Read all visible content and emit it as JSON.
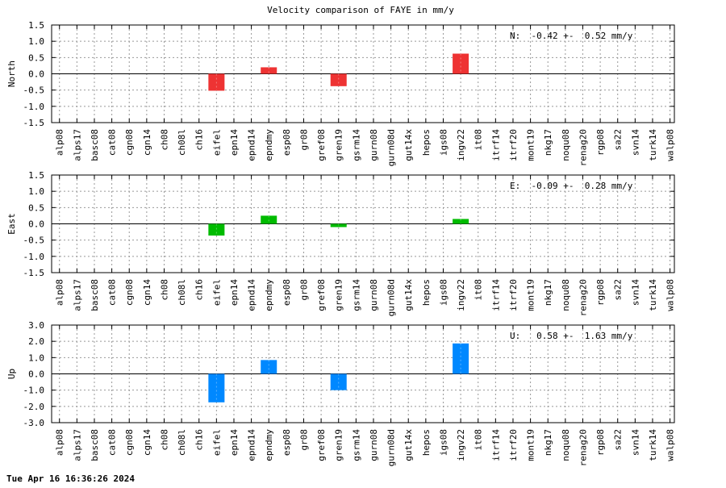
{
  "title": "Velocity comparison of FAYE in mm/y",
  "footer": "Tue Apr 16 16:36:26 2024",
  "chart_data": [
    {
      "type": "bar",
      "ylabel": "North",
      "stat_text": "N:  -0.42 +-  0.52 mm/y",
      "color": "#ee3333",
      "ylim": [
        -1.5,
        1.5
      ],
      "yticks": [
        -1.5,
        -1.0,
        -0.5,
        0.0,
        0.5,
        1.0,
        1.5
      ],
      "ytick_labels": [
        "-1.5",
        "-1.0",
        "-0.5",
        "0.0",
        "0.5",
        "1.0",
        "1.5"
      ],
      "grid": true,
      "categories": [
        "alp08",
        "alps17",
        "basc08",
        "cat08",
        "cgn08",
        "cgn14",
        "ch08",
        "ch08l",
        "ch16",
        "eifel",
        "epn14",
        "epnd14",
        "epndmy",
        "esp08",
        "gr08",
        "gref08",
        "gren19",
        "gsrm14",
        "gurn08",
        "gurn08d",
        "gut14x",
        "hepos",
        "igs08",
        "ingv22",
        "it08",
        "itrf14",
        "itrf20",
        "mont19",
        "nkg17",
        "noqu08",
        "renag20",
        "rgp08",
        "sa22",
        "svn14",
        "turk14",
        "walp08"
      ],
      "values": [
        null,
        null,
        null,
        null,
        null,
        null,
        null,
        null,
        null,
        -0.52,
        null,
        null,
        0.2,
        null,
        null,
        null,
        -0.38,
        null,
        null,
        null,
        null,
        null,
        null,
        0.62,
        null,
        null,
        null,
        null,
        null,
        null,
        null,
        null,
        null,
        null,
        null,
        null
      ]
    },
    {
      "type": "bar",
      "ylabel": "East",
      "stat_text": "E:  -0.09 +-  0.28 mm/y",
      "color": "#00bb00",
      "ylim": [
        -1.5,
        1.5
      ],
      "yticks": [
        -1.5,
        -1.0,
        -0.5,
        0.0,
        0.5,
        1.0,
        1.5
      ],
      "ytick_labels": [
        "-1.5",
        "-1.0",
        "-0.5",
        "0.0",
        "0.5",
        "1.0",
        "1.5"
      ],
      "grid": true,
      "categories": [
        "alp08",
        "alps17",
        "basc08",
        "cat08",
        "cgn08",
        "cgn14",
        "ch08",
        "ch08l",
        "ch16",
        "eifel",
        "epn14",
        "epnd14",
        "epndmy",
        "esp08",
        "gr08",
        "gref08",
        "gren19",
        "gsrm14",
        "gurn08",
        "gurn08d",
        "gut14x",
        "hepos",
        "igs08",
        "ingv22",
        "it08",
        "itrf14",
        "itrf20",
        "mont19",
        "nkg17",
        "noqu08",
        "renag20",
        "rgp08",
        "sa22",
        "svn14",
        "turk14",
        "walp08"
      ],
      "values": [
        null,
        null,
        null,
        null,
        null,
        null,
        null,
        null,
        null,
        -0.36,
        null,
        null,
        0.25,
        null,
        null,
        null,
        -0.1,
        null,
        null,
        null,
        null,
        null,
        null,
        0.15,
        null,
        null,
        null,
        null,
        null,
        null,
        null,
        null,
        null,
        null,
        null,
        null
      ]
    },
    {
      "type": "bar",
      "ylabel": "Up",
      "stat_text": "U:   0.58 +-  1.63 mm/y",
      "color": "#0088ff",
      "ylim": [
        -3.0,
        3.0
      ],
      "yticks": [
        -3.0,
        -2.0,
        -1.0,
        0.0,
        1.0,
        2.0,
        3.0
      ],
      "ytick_labels": [
        "-3.0",
        "-2.0",
        "-1.0",
        "0.0",
        "1.0",
        "2.0",
        "3.0"
      ],
      "grid": true,
      "categories": [
        "alp08",
        "alps17",
        "basc08",
        "cat08",
        "cgn08",
        "cgn14",
        "ch08",
        "ch08l",
        "ch16",
        "eifel",
        "epn14",
        "epnd14",
        "epndmy",
        "esp08",
        "gr08",
        "gref08",
        "gren19",
        "gsrm14",
        "gurn08",
        "gurn08d",
        "gut14x",
        "hepos",
        "igs08",
        "ingv22",
        "it08",
        "itrf14",
        "itrf20",
        "mont19",
        "nkg17",
        "noqu08",
        "renag20",
        "rgp08",
        "sa22",
        "svn14",
        "turk14",
        "walp08"
      ],
      "values": [
        null,
        null,
        null,
        null,
        null,
        null,
        null,
        null,
        null,
        -1.75,
        null,
        null,
        0.85,
        null,
        null,
        null,
        -1.0,
        null,
        null,
        null,
        null,
        null,
        null,
        1.87,
        null,
        null,
        null,
        null,
        null,
        null,
        null,
        null,
        null,
        null,
        null,
        null
      ]
    }
  ]
}
